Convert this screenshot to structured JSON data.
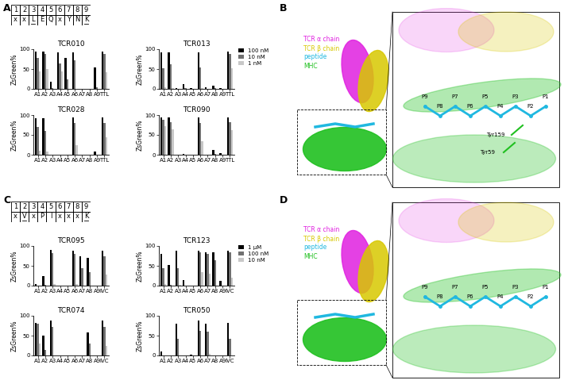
{
  "panel_labels": [
    "A",
    "B",
    "C",
    "D"
  ],
  "motifs": [
    {
      "positions": [
        1,
        2,
        3,
        4,
        5,
        6,
        7,
        8,
        9
      ],
      "residues": [
        "x",
        "x",
        "L",
        "E",
        "Q",
        "x",
        "Y",
        "N",
        "K"
      ],
      "underlined": [
        false,
        false,
        true,
        false,
        false,
        false,
        false,
        false,
        true
      ]
    },
    {
      "positions": [
        1,
        2,
        3,
        4,
        5,
        6,
        7,
        8,
        9
      ],
      "residues": [
        "x",
        "V",
        "x",
        "P",
        "I",
        "x",
        "x",
        "x",
        "K"
      ],
      "underlined": [
        false,
        true,
        false,
        false,
        false,
        false,
        false,
        false,
        true
      ]
    }
  ],
  "structures": [
    {
      "legend": [
        {
          "label": "TCR α chain",
          "color": "#e020e0"
        },
        {
          "label": "TCR β chain",
          "color": "#d8c800"
        },
        {
          "label": "peptide",
          "color": "#20b8e0"
        },
        {
          "label": "MHC",
          "color": "#20c020"
        }
      ],
      "peptide_labels": [
        "P1",
        "P2",
        "P3",
        "P4",
        "P5",
        "P6",
        "P7",
        "P8",
        "P9"
      ],
      "residue_labels": [
        "Tyr159",
        "Tyr59"
      ]
    },
    {
      "legend": [
        {
          "label": "TCR α chain",
          "color": "#e020e0"
        },
        {
          "label": "TCR β chain",
          "color": "#d8c800"
        },
        {
          "label": "peptide",
          "color": "#20b8e0"
        },
        {
          "label": "MHC",
          "color": "#20c020"
        }
      ],
      "peptide_labels": [
        "P1",
        "P2",
        "P3",
        "P4",
        "P5",
        "P6",
        "P7",
        "P8",
        "P9"
      ]
    }
  ],
  "chart_data": [
    {
      "type": "bar",
      "title": "TCR010",
      "y_label": "ZsGreen%",
      "ylim": [
        0,
        100
      ],
      "yticks": [
        0,
        50,
        100
      ],
      "categories": [
        "A1",
        "A2",
        "A3",
        "A4",
        "A5",
        "A6",
        "A7",
        "A8",
        "A9",
        "TTL"
      ],
      "series": [
        {
          "name": "100 nM",
          "color": "#000000",
          "values": [
            95,
            95,
            18,
            92,
            78,
            92,
            0,
            0,
            55,
            95
          ]
        },
        {
          "name": "10 nM",
          "color": "#707070",
          "values": [
            78,
            88,
            2,
            65,
            25,
            72,
            0,
            0,
            5,
            88
          ]
        },
        {
          "name": "1 nM",
          "color": "#c8c8c8",
          "values": [
            45,
            50,
            0,
            45,
            0,
            0,
            0,
            0,
            0,
            42
          ]
        }
      ]
    },
    {
      "type": "bar",
      "title": "TCR013",
      "y_label": "ZsGreen%",
      "ylim": [
        0,
        100
      ],
      "yticks": [
        0,
        50,
        100
      ],
      "legend": "right",
      "categories": [
        "A1",
        "A2",
        "A3",
        "A4",
        "A5",
        "A6",
        "A7",
        "A8",
        "A9",
        "TTL"
      ],
      "series": [
        {
          "name": "100 nM",
          "color": "#000000",
          "values": [
            92,
            92,
            2,
            12,
            3,
            92,
            5,
            8,
            3,
            95
          ]
        },
        {
          "name": "10 nM",
          "color": "#707070",
          "values": [
            52,
            62,
            0,
            2,
            0,
            55,
            0,
            2,
            0,
            88
          ]
        },
        {
          "name": "1 nM",
          "color": "#c8c8c8",
          "values": [
            5,
            3,
            0,
            0,
            0,
            3,
            0,
            0,
            0,
            52
          ]
        }
      ]
    },
    {
      "type": "bar",
      "title": "TCR028",
      "y_label": "ZsGreen%",
      "ylim": [
        0,
        100
      ],
      "yticks": [
        0,
        50,
        100
      ],
      "categories": [
        "A1",
        "A2",
        "A3",
        "A4",
        "A5",
        "A6",
        "A7",
        "A8",
        "A9",
        "TTL"
      ],
      "series": [
        {
          "name": "100 nM",
          "color": "#000000",
          "values": [
            92,
            92,
            0,
            0,
            0,
            95,
            0,
            0,
            8,
            95
          ]
        },
        {
          "name": "10 nM",
          "color": "#707070",
          "values": [
            70,
            60,
            0,
            0,
            0,
            80,
            0,
            0,
            0,
            80
          ]
        },
        {
          "name": "1 nM",
          "color": "#c8c8c8",
          "values": [
            10,
            8,
            0,
            0,
            0,
            25,
            0,
            0,
            0,
            45
          ]
        }
      ]
    },
    {
      "type": "bar",
      "title": "TCR090",
      "y_label": "ZsGreen%",
      "ylim": [
        0,
        100
      ],
      "yticks": [
        0,
        50,
        100
      ],
      "categories": [
        "A1",
        "A2",
        "A3",
        "A4",
        "A5",
        "A6",
        "A7",
        "A8",
        "A9",
        "TTL"
      ],
      "series": [
        {
          "name": "100 nM",
          "color": "#000000",
          "values": [
            95,
            95,
            0,
            3,
            0,
            95,
            0,
            12,
            5,
            95
          ]
        },
        {
          "name": "10 nM",
          "color": "#707070",
          "values": [
            88,
            82,
            0,
            0,
            0,
            80,
            0,
            2,
            0,
            82
          ]
        },
        {
          "name": "1 nM",
          "color": "#c8c8c8",
          "values": [
            72,
            65,
            0,
            0,
            0,
            35,
            0,
            0,
            0,
            62
          ]
        }
      ]
    },
    {
      "type": "bar",
      "title": "TCR095",
      "y_label": "ZsGreen%",
      "ylim": [
        0,
        100
      ],
      "yticks": [
        0,
        50,
        100
      ],
      "categories": [
        "A1",
        "A2",
        "A3",
        "A4",
        "A5",
        "A6",
        "A7",
        "A8",
        "A9",
        "IVC"
      ],
      "series": [
        {
          "name": "1 μM",
          "color": "#000000",
          "values": [
            5,
            25,
            90,
            0,
            0,
            88,
            75,
            70,
            0,
            88
          ]
        },
        {
          "name": "100 nM",
          "color": "#707070",
          "values": [
            0,
            2,
            82,
            0,
            0,
            80,
            45,
            35,
            0,
            75
          ]
        },
        {
          "name": "10 nM",
          "color": "#c8c8c8",
          "values": [
            0,
            0,
            5,
            0,
            0,
            5,
            0,
            0,
            0,
            28
          ]
        }
      ]
    },
    {
      "type": "bar",
      "title": "TCR123",
      "y_label": "ZsGreen%",
      "ylim": [
        0,
        100
      ],
      "yticks": [
        0,
        50,
        100
      ],
      "legend": "right",
      "categories": [
        "A1",
        "A2",
        "A3",
        "A4",
        "A5",
        "A6",
        "A7",
        "A8",
        "A9",
        "IVC"
      ],
      "series": [
        {
          "name": "1 μM",
          "color": "#000000",
          "values": [
            80,
            52,
            88,
            15,
            0,
            88,
            85,
            85,
            12,
            88
          ]
        },
        {
          "name": "100 nM",
          "color": "#707070",
          "values": [
            45,
            3,
            45,
            0,
            0,
            85,
            80,
            65,
            0,
            85
          ]
        },
        {
          "name": "10 nM",
          "color": "#c8c8c8",
          "values": [
            5,
            0,
            3,
            0,
            0,
            35,
            30,
            0,
            0,
            20
          ]
        }
      ]
    },
    {
      "type": "bar",
      "title": "TCR074",
      "y_label": "ZsGreen%",
      "ylim": [
        0,
        100
      ],
      "yticks": [
        0,
        50,
        100
      ],
      "categories": [
        "A1",
        "A2",
        "A3",
        "A4",
        "A5",
        "A6",
        "A7",
        "A8",
        "A9",
        "IVC"
      ],
      "series": [
        {
          "name": "1 μM",
          "color": "#000000",
          "values": [
            82,
            50,
            88,
            0,
            0,
            0,
            0,
            58,
            0,
            88
          ]
        },
        {
          "name": "100 nM",
          "color": "#707070",
          "values": [
            80,
            15,
            72,
            0,
            0,
            0,
            0,
            30,
            0,
            72
          ]
        },
        {
          "name": "10 nM",
          "color": "#c8c8c8",
          "values": [
            30,
            0,
            0,
            0,
            0,
            0,
            0,
            0,
            0,
            25
          ]
        }
      ]
    },
    {
      "type": "bar",
      "title": "TCR050",
      "y_label": "ZsGreen%",
      "ylim": [
        0,
        100
      ],
      "yticks": [
        0,
        50,
        100
      ],
      "categories": [
        "A1",
        "A2",
        "A3",
        "A4",
        "A5",
        "A6",
        "A7",
        "A8",
        "A9",
        "IVC"
      ],
      "series": [
        {
          "name": "1 μM",
          "color": "#000000",
          "values": [
            10,
            0,
            80,
            0,
            3,
            88,
            80,
            0,
            0,
            82
          ]
        },
        {
          "name": "100 nM",
          "color": "#707070",
          "values": [
            0,
            0,
            42,
            0,
            0,
            62,
            60,
            0,
            0,
            42
          ]
        },
        {
          "name": "10 nM",
          "color": "#c8c8c8",
          "values": [
            0,
            0,
            0,
            0,
            0,
            0,
            5,
            0,
            0,
            0
          ]
        }
      ]
    }
  ]
}
